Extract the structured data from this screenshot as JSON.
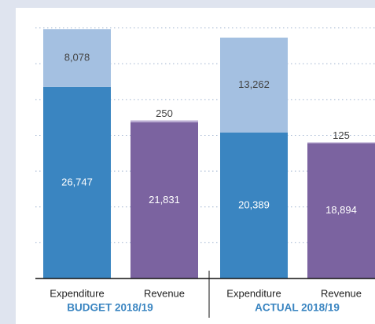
{
  "chart_data": {
    "type": "stacked-bar",
    "categories": [
      "Expenditure",
      "Revenue",
      "Expenditure",
      "Revenue"
    ],
    "groups": [
      "BUDGET 2018/19",
      "ACTUAL 2018/19"
    ],
    "series": [
      {
        "colors": [
          "#3a85c1",
          "#7b63a0",
          "#3a85c1",
          "#7b63a0"
        ],
        "values": [
          26747,
          21831,
          20389,
          18894
        ],
        "value_labels": [
          "26,747",
          "21,831",
          "20,389",
          "18,894"
        ]
      },
      {
        "colors": [
          "#a4c0e1",
          "#b9abd2",
          "#a4c0e1",
          "#b9abd2"
        ],
        "values": [
          8078,
          250,
          13262,
          125
        ],
        "value_labels": [
          "8,078",
          "250",
          "13,262",
          "125"
        ]
      }
    ],
    "ylim": [
      0,
      35000
    ],
    "yticks": [
      5000,
      10000,
      15000,
      20000,
      25000,
      30000,
      35000
    ],
    "grid": true,
    "group_color": "#3a85c1"
  }
}
